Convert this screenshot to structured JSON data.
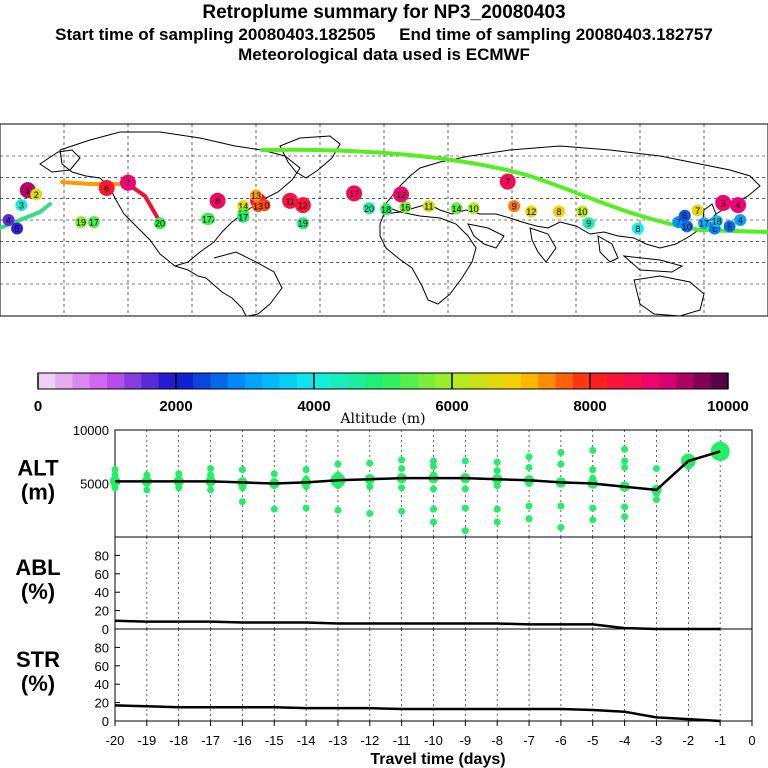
{
  "header": {
    "title": "Retroplume summary for NP3_20080403",
    "sampling_line": "Start time of sampling 20080403.182505     End time of sampling 20080403.182757",
    "met_line": "Meteorological data used is ECMWF"
  },
  "colors": {
    "plume": "#22ee66",
    "line": "#000000",
    "track_green": "#55ee22",
    "track_orange": "#ff9900",
    "track_red": "#ee1133"
  },
  "chart_data": [
    {
      "type": "scatter",
      "name": "map",
      "title": "Plume centroid positions",
      "lon_range": [
        -180,
        180
      ],
      "lat_range": [
        -90,
        90
      ],
      "points": [
        {
          "lon": -167,
          "lat": 28,
          "alt": 9300,
          "label": "1"
        },
        {
          "lon": -163,
          "lat": 24,
          "alt": 6500,
          "label": "2"
        },
        {
          "lon": -170,
          "lat": 14,
          "alt": 4200,
          "label": "3"
        },
        {
          "lon": -176,
          "lat": 0,
          "alt": 1600,
          "label": "4"
        },
        {
          "lon": -172,
          "lat": -8,
          "alt": 1800,
          "label": "5"
        },
        {
          "lon": -130,
          "lat": 30,
          "alt": 8300,
          "label": "6"
        },
        {
          "lon": -120,
          "lat": 35,
          "alt": 9000,
          "label": "7"
        },
        {
          "lon": -78,
          "lat": 18,
          "alt": 8800,
          "label": "8"
        },
        {
          "lon": -59,
          "lat": 18,
          "alt": 8700,
          "label": "9"
        },
        {
          "lon": -56,
          "lat": 14,
          "alt": 7800,
          "label": "10"
        },
        {
          "lon": -44,
          "lat": 18,
          "alt": 8500,
          "label": "11"
        },
        {
          "lon": -38,
          "lat": 14,
          "alt": 8400,
          "label": "12"
        },
        {
          "lon": -59,
          "lat": 13,
          "alt": 7700,
          "label": "13"
        },
        {
          "lon": -66,
          "lat": 13,
          "alt": 6700,
          "label": "14"
        },
        {
          "lon": -66,
          "lat": 6,
          "alt": 5500,
          "label": "15"
        },
        {
          "lon": -82,
          "lat": 1,
          "alt": 5200,
          "label": "16"
        },
        {
          "lon": -83,
          "lat": 1,
          "alt": 5200,
          "label": "17"
        },
        {
          "lon": -66,
          "lat": 3,
          "alt": 5000,
          "label": "17"
        },
        {
          "lon": -136,
          "lat": -2,
          "alt": 5300,
          "label": "17"
        },
        {
          "lon": -142,
          "lat": -2,
          "alt": 5800,
          "label": "19"
        },
        {
          "lon": -105,
          "lat": -3,
          "alt": 5200,
          "label": "20"
        },
        {
          "lon": -38,
          "lat": -3,
          "alt": 4800,
          "label": "19"
        },
        {
          "lon": -7,
          "lat": 11,
          "alt": 4500,
          "label": "20"
        },
        {
          "lon": 1,
          "lat": 10,
          "alt": 5000,
          "label": "18"
        },
        {
          "lon": 10,
          "lat": 12,
          "alt": 5600,
          "label": "16"
        },
        {
          "lon": 21,
          "lat": 13,
          "alt": 6400,
          "label": "11"
        },
        {
          "lon": 34,
          "lat": 11,
          "alt": 5500,
          "label": "14"
        },
        {
          "lon": 42,
          "lat": 11,
          "alt": 6000,
          "label": "10"
        },
        {
          "lon": 61,
          "lat": 13,
          "alt": 7500,
          "label": "9"
        },
        {
          "lon": 69,
          "lat": 8,
          "alt": 6700,
          "label": "12"
        },
        {
          "lon": 82,
          "lat": 8,
          "alt": 7000,
          "label": "8"
        },
        {
          "lon": 93,
          "lat": 8,
          "alt": 6200,
          "label": "10"
        },
        {
          "lon": 96,
          "lat": -3,
          "alt": 4400,
          "label": "9"
        },
        {
          "lon": 119,
          "lat": -8,
          "alt": 4000,
          "label": "8"
        },
        {
          "lon": 138,
          "lat": -2,
          "alt": 3000,
          "label": "7"
        },
        {
          "lon": 141,
          "lat": 4,
          "alt": 2500,
          "label": "6"
        },
        {
          "lon": 147,
          "lat": 9,
          "alt": 6700,
          "label": "7"
        },
        {
          "lon": 159,
          "lat": 16,
          "alt": 8900,
          "label": "3"
        },
        {
          "lon": 166,
          "lat": 14,
          "alt": 9000,
          "label": "4"
        },
        {
          "lon": 142,
          "lat": -6,
          "alt": 2700,
          "label": "10"
        },
        {
          "lon": 155,
          "lat": -8,
          "alt": 2800,
          "label": "c"
        },
        {
          "lon": 162,
          "lat": -6,
          "alt": 2700,
          "label": "5"
        },
        {
          "lon": 167,
          "lat": 0,
          "alt": 3100,
          "label": "4"
        },
        {
          "lon": 150,
          "lat": -3,
          "alt": 3300,
          "label": "17"
        },
        {
          "lon": 156,
          "lat": -1,
          "alt": 3500,
          "label": "18"
        },
        {
          "lon": 58,
          "lat": 36,
          "alt": 8700,
          "label": "7"
        },
        {
          "lon": 8,
          "lat": 24,
          "alt": 8900,
          "label": "12"
        },
        {
          "lon": -14,
          "lat": 25,
          "alt": 8700,
          "label": "17"
        },
        {
          "lon": -60,
          "lat": 23,
          "alt": 7300,
          "label": "13"
        }
      ]
    },
    {
      "type": "colorbar",
      "xlabel": "Altitude (m)",
      "ticks": [
        0,
        2000,
        4000,
        6000,
        8000,
        10000
      ],
      "range": [
        0,
        10000
      ]
    },
    {
      "type": "scatter",
      "name": "ALT",
      "ylabel": "ALT\n(m)",
      "ylim": [
        0,
        10000
      ],
      "yticks": [
        5000,
        10000
      ],
      "x": [
        -20,
        -19,
        -18,
        -17,
        -16,
        -15,
        -14,
        -13,
        -12,
        -11,
        -10,
        -9,
        -8,
        -7,
        -6,
        -5,
        -4,
        -3,
        -2,
        -1
      ],
      "median": [
        5200,
        5200,
        5200,
        5200,
        5100,
        5000,
        5100,
        5300,
        5400,
        5500,
        5500,
        5500,
        5400,
        5300,
        5100,
        5000,
        4700,
        4400,
        7100,
        8000
      ],
      "spread": [
        [
          4600,
          5200,
          5800,
          6300
        ],
        [
          4400,
          5200,
          5800
        ],
        [
          4600,
          5200,
          5900
        ],
        [
          4400,
          5200,
          5800,
          6400
        ],
        [
          3300,
          4600,
          5200,
          6300
        ],
        [
          2600,
          4800,
          5200,
          5900
        ],
        [
          2700,
          4700,
          5400,
          6300
        ],
        [
          2500,
          4800,
          5800,
          6800
        ],
        [
          2200,
          4700,
          5500,
          6900
        ],
        [
          2400,
          4600,
          5600,
          6400,
          7200
        ],
        [
          1400,
          2600,
          4500,
          5800,
          6600,
          7100
        ],
        [
          600,
          2700,
          4500,
          7100
        ],
        [
          1400,
          2600,
          4800,
          6200,
          7000
        ],
        [
          1700,
          2900,
          5000,
          6500,
          7500
        ],
        [
          900,
          2900,
          5100,
          6800,
          7900
        ],
        [
          1600,
          2700,
          5500,
          6300,
          8100
        ],
        [
          1900,
          2800,
          6500,
          7100,
          8200
        ],
        [
          3500,
          4100,
          6400
        ],
        [
          6600,
          7200
        ],
        [
          8000
        ]
      ],
      "bubble_size": [
        1,
        1,
        1,
        1,
        1,
        1,
        1,
        2,
        1,
        1,
        1,
        1,
        1,
        1,
        1,
        1,
        1,
        1,
        2,
        3
      ]
    },
    {
      "type": "line",
      "name": "ABL",
      "ylabel": "ABL\n(%)",
      "ylim": [
        0,
        100
      ],
      "yticks": [
        0,
        20,
        40,
        60,
        80
      ],
      "x": [
        -20,
        -19,
        -18,
        -17,
        -16,
        -15,
        -14,
        -13,
        -12,
        -11,
        -10,
        -9,
        -8,
        -7,
        -6,
        -5,
        -4,
        -3,
        -2,
        -1
      ],
      "values": [
        9,
        8,
        8,
        8,
        7,
        7,
        7,
        6,
        6,
        6,
        6,
        6,
        6,
        5,
        5,
        5,
        1,
        0,
        0,
        0
      ]
    },
    {
      "type": "line",
      "name": "STR",
      "ylabel": "STR\n(%)",
      "ylim": [
        0,
        100
      ],
      "yticks": [
        0,
        20,
        40,
        60,
        80
      ],
      "x": [
        -20,
        -19,
        -18,
        -17,
        -16,
        -15,
        -14,
        -13,
        -12,
        -11,
        -10,
        -9,
        -8,
        -7,
        -6,
        -5,
        -4,
        -3,
        -2,
        -1
      ],
      "values": [
        17,
        16,
        15,
        15,
        15,
        15,
        14,
        14,
        14,
        13,
        13,
        13,
        13,
        13,
        13,
        12,
        10,
        4,
        2,
        0
      ],
      "xlabel": "Travel time (days)",
      "xticks": [
        -20,
        -19,
        -18,
        -17,
        -16,
        -15,
        -14,
        -13,
        -12,
        -11,
        -10,
        -9,
        -8,
        -7,
        -6,
        -5,
        -4,
        -3,
        -2,
        -1,
        0
      ]
    }
  ]
}
